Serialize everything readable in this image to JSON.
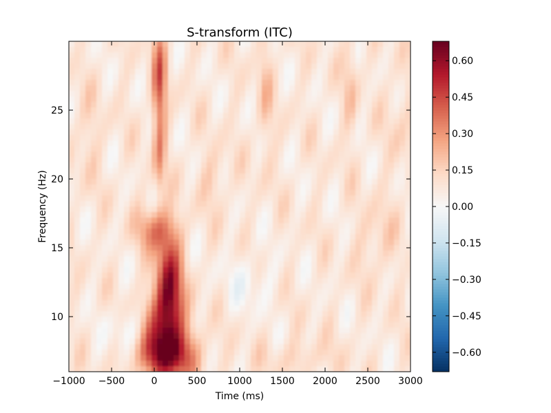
{
  "chart_data": {
    "type": "heatmap",
    "title": "S-transform (ITC)",
    "xlabel": "Time (ms)",
    "ylabel": "Frequency (Hz)",
    "xlim": [
      -1000,
      3000
    ],
    "ylim": [
      6,
      30
    ],
    "x_ticks": [
      -1000,
      -500,
      0,
      500,
      1000,
      1500,
      2000,
      2500,
      3000
    ],
    "x_tick_labels": [
      "−1000",
      "−500",
      "0",
      "500",
      "1000",
      "1500",
      "2000",
      "2500",
      "3000"
    ],
    "y_ticks": [
      10,
      15,
      20,
      25
    ],
    "y_tick_labels": [
      "10",
      "15",
      "20",
      "25"
    ],
    "colorbar": {
      "colormap": "RdBu_r",
      "vmin": -0.68,
      "vmax": 0.68,
      "ticks": [
        -0.6,
        -0.45,
        -0.3,
        -0.15,
        0.0,
        0.15,
        0.3,
        0.45,
        0.6
      ],
      "tick_labels": [
        "−0.60",
        "−0.45",
        "−0.30",
        "−0.15",
        "0.00",
        "0.15",
        "0.30",
        "0.45",
        "0.60"
      ]
    },
    "background_itc": 0.08,
    "features": [
      {
        "t": 150,
        "f": 7.5,
        "value": 0.62
      },
      {
        "t": 150,
        "f": 12,
        "value": 0.66
      },
      {
        "t": 50,
        "f": 16,
        "value": 0.35
      },
      {
        "t": 50,
        "f": 27,
        "value": 0.38
      },
      {
        "t": 1300,
        "f": 26,
        "value": 0.18
      },
      {
        "t": 2300,
        "f": 27,
        "value": 0.18
      },
      {
        "t": 2600,
        "f": 15,
        "value": 0.14
      },
      {
        "t": 700,
        "f": 20,
        "value": 0.16
      },
      {
        "t": -800,
        "f": 23,
        "value": 0.14
      },
      {
        "t": 1700,
        "f": 7,
        "value": 0.14
      },
      {
        "t": 2900,
        "f": 24,
        "value": 0.14
      }
    ],
    "grid": false,
    "legend": "none"
  }
}
